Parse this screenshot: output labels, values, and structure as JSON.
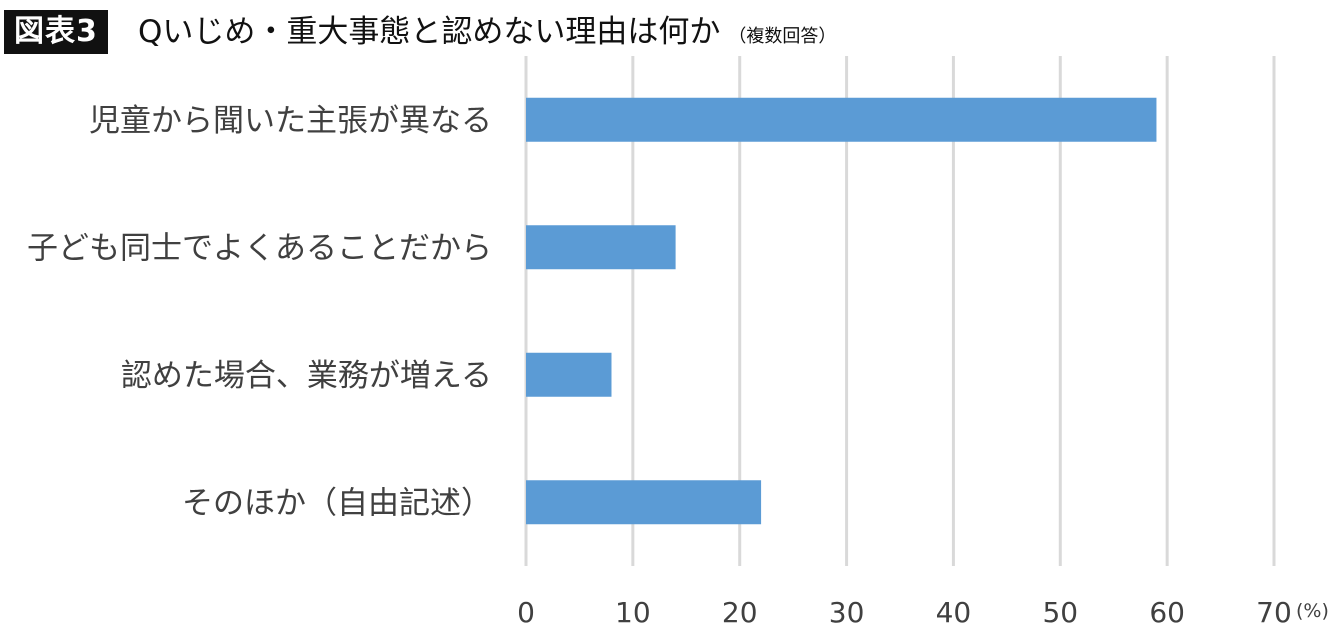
{
  "header": {
    "figure_label": "図表3",
    "title": "Qいじめ・重大事態と認めない理由は何か",
    "note": "（複数回答）"
  },
  "chart_data": {
    "type": "bar",
    "orientation": "horizontal",
    "categories": [
      "児童から聞いた主張が異なる",
      "子ども同士でよくあることだから",
      "認めた場合、業務が増える",
      "そのほか（自由記述）"
    ],
    "values": [
      59,
      14,
      8,
      22
    ],
    "xlim": [
      0,
      70
    ],
    "ticks": [
      "0",
      "10",
      "20",
      "30",
      "40",
      "50",
      "60",
      "70"
    ],
    "unit": "(%)",
    "grid": true,
    "bar_color": "#5b9bd5",
    "grid_color": "#d9d9d9"
  }
}
